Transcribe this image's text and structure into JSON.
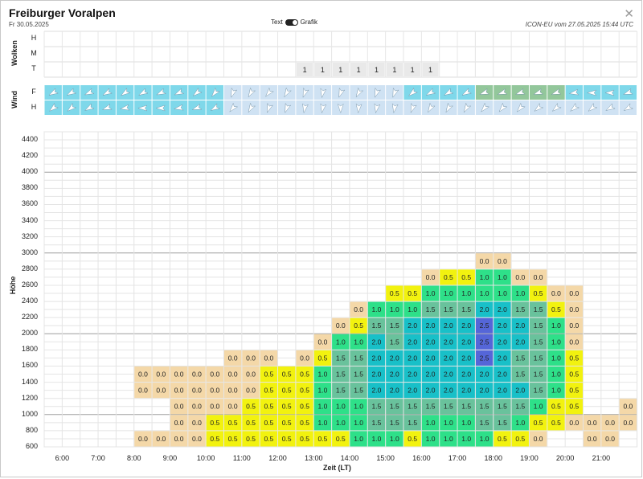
{
  "header": {
    "title": "Freiburger Voralpen",
    "date": "Fr 30.05.2025",
    "toggle_text": "Text",
    "toggle_grafik": "Grafik",
    "model_info": "ICON-EU vom 27.05.2025 15:44 UTC"
  },
  "clouds": {
    "section_label": "Wolken",
    "rows": [
      "H",
      "M",
      "T"
    ],
    "low_values": [
      null,
      null,
      null,
      null,
      null,
      null,
      null,
      null,
      null,
      null,
      null,
      null,
      null,
      null,
      1,
      1,
      1,
      1,
      1,
      1,
      1,
      1,
      null,
      null,
      null,
      null,
      null,
      null,
      null,
      null,
      null,
      null,
      null
    ]
  },
  "wind": {
    "section_label": "Wind",
    "rows": [
      "F",
      "H"
    ],
    "colors": {
      "light": "#cfe2f3",
      "cyan": "#7fd8ea",
      "green": "#93c79b"
    },
    "f_colors": [
      "cyan",
      "cyan",
      "cyan",
      "cyan",
      "cyan",
      "cyan",
      "cyan",
      "cyan",
      "cyan",
      "cyan",
      "light",
      "light",
      "light",
      "light",
      "light",
      "light",
      "light",
      "light",
      "light",
      "light",
      "cyan",
      "cyan",
      "cyan",
      "cyan",
      "green",
      "green",
      "green",
      "green",
      "green",
      "cyan",
      "cyan",
      "cyan",
      "cyan"
    ],
    "h_colors": [
      "cyan",
      "cyan",
      "cyan",
      "cyan",
      "cyan",
      "cyan",
      "cyan",
      "cyan",
      "cyan",
      "cyan",
      "light",
      "light",
      "light",
      "light",
      "light",
      "light",
      "light",
      "light",
      "light",
      "light",
      "light",
      "light",
      "light",
      "light",
      "light",
      "light",
      "light",
      "light",
      "light",
      "light",
      "light",
      "light",
      "light"
    ],
    "f_dirs": [
      240,
      240,
      245,
      240,
      235,
      240,
      245,
      245,
      230,
      220,
      200,
      210,
      220,
      210,
      200,
      190,
      200,
      210,
      200,
      200,
      230,
      240,
      240,
      240,
      250,
      250,
      250,
      250,
      250,
      260,
      270,
      270,
      250
    ],
    "h_dirs": [
      230,
      230,
      240,
      250,
      260,
      270,
      270,
      260,
      250,
      240,
      220,
      210,
      200,
      200,
      190,
      190,
      180,
      185,
      190,
      190,
      200,
      210,
      210,
      210,
      220,
      220,
      220,
      230,
      230,
      230,
      230,
      240,
      240
    ]
  },
  "chart": {
    "y_axis_title": "Höhe",
    "x_axis_title": "Zeit (LT)",
    "y_ticks": [
      600,
      800,
      1000,
      1200,
      1400,
      1600,
      1800,
      2000,
      2200,
      2400,
      2600,
      2800,
      3000,
      3200,
      3400,
      3600,
      3800,
      4000,
      4200,
      4400
    ],
    "x_ticks": [
      "6:00",
      "7:00",
      "8:00",
      "9:00",
      "10:00",
      "11:00",
      "12:00",
      "13:00",
      "14:00",
      "15:00",
      "16:00",
      "17:00",
      "18:00",
      "19:00",
      "20:00",
      "21:00"
    ],
    "legend_colors": {
      "0.0": "#f4d8a8",
      "0.5": "#f2f20f",
      "1.0": "#2ee089",
      "1.5": "#69c29c",
      "2.0": "#18c0c8",
      "2.5": "#5566d8"
    }
  },
  "chart_data": {
    "type": "heatmap",
    "title": "",
    "xlabel": "Zeit (LT)",
    "ylabel": "Höhe",
    "x": [
      "5:45",
      "6:15",
      "6:45",
      "7:15",
      "7:45",
      "8:15",
      "8:45",
      "9:15",
      "9:45",
      "10:15",
      "10:45",
      "11:15",
      "11:45",
      "12:15",
      "12:45",
      "13:15",
      "13:45",
      "14:15",
      "14:45",
      "15:15",
      "15:45",
      "16:15",
      "16:45",
      "17:15",
      "17:45",
      "18:15",
      "18:45",
      "19:15",
      "19:45",
      "20:15",
      "20:45",
      "21:15",
      "21:45"
    ],
    "y": [
      700,
      900,
      1100,
      1300,
      1500,
      1700,
      1900,
      2100,
      2300,
      2500,
      2700,
      2900
    ],
    "rows": [
      [
        null,
        null,
        null,
        null,
        null,
        0.0,
        0.0,
        0.0,
        0.0,
        0.5,
        0.5,
        0.5,
        0.5,
        0.5,
        0.5,
        0.5,
        0.5,
        1.0,
        1.0,
        1.0,
        0.5,
        1.0,
        1.0,
        1.0,
        1.0,
        0.5,
        0.5,
        0.0,
        null,
        null,
        0.0,
        0.0,
        null
      ],
      [
        null,
        null,
        null,
        null,
        null,
        null,
        null,
        0.0,
        0.0,
        0.5,
        0.5,
        0.5,
        0.5,
        0.5,
        0.5,
        1.0,
        1.0,
        1.0,
        1.5,
        1.5,
        1.5,
        1.0,
        1.0,
        1.0,
        1.5,
        1.5,
        1.0,
        0.5,
        0.5,
        0.0,
        0.0,
        0.0,
        0.0
      ],
      [
        null,
        null,
        null,
        null,
        null,
        null,
        null,
        0.0,
        0.0,
        0.0,
        0.0,
        0.5,
        0.5,
        0.5,
        0.5,
        1.0,
        1.0,
        1.0,
        1.5,
        1.5,
        1.5,
        1.5,
        1.5,
        1.5,
        1.5,
        1.5,
        1.5,
        1.0,
        0.5,
        0.5,
        null,
        null,
        0.0
      ],
      [
        null,
        null,
        null,
        null,
        null,
        0.0,
        0.0,
        0.0,
        0.0,
        0.0,
        0.0,
        0.0,
        0.5,
        0.5,
        0.5,
        1.0,
        1.5,
        1.5,
        2.0,
        2.0,
        2.0,
        2.0,
        2.0,
        2.0,
        2.0,
        2.0,
        2.0,
        1.5,
        1.0,
        0.5,
        null,
        null,
        null
      ],
      [
        null,
        null,
        null,
        null,
        null,
        0.0,
        0.0,
        0.0,
        0.0,
        0.0,
        0.0,
        0.0,
        0.5,
        0.5,
        0.5,
        1.0,
        1.5,
        1.5,
        2.0,
        2.0,
        2.0,
        2.0,
        2.0,
        2.0,
        2.0,
        2.0,
        1.5,
        1.5,
        1.0,
        0.5,
        null,
        null,
        null
      ],
      [
        null,
        null,
        null,
        null,
        null,
        null,
        null,
        null,
        null,
        null,
        0.0,
        0.0,
        0.0,
        null,
        0.0,
        0.5,
        1.5,
        1.5,
        2.0,
        2.0,
        2.0,
        2.0,
        2.0,
        2.0,
        2.5,
        2.0,
        1.5,
        1.5,
        1.0,
        0.5,
        null,
        null,
        null
      ],
      [
        null,
        null,
        null,
        null,
        null,
        null,
        null,
        null,
        null,
        null,
        null,
        null,
        null,
        null,
        null,
        0.0,
        1.0,
        1.0,
        2.0,
        1.5,
        2.0,
        2.0,
        2.0,
        2.0,
        2.5,
        2.0,
        2.0,
        1.5,
        1.0,
        0.0,
        null,
        null,
        null
      ],
      [
        null,
        null,
        null,
        null,
        null,
        null,
        null,
        null,
        null,
        null,
        null,
        null,
        null,
        null,
        null,
        null,
        0.0,
        0.5,
        1.5,
        1.5,
        2.0,
        2.0,
        2.0,
        2.0,
        2.5,
        2.0,
        2.0,
        1.5,
        1.0,
        0.0,
        null,
        null,
        null
      ],
      [
        null,
        null,
        null,
        null,
        null,
        null,
        null,
        null,
        null,
        null,
        null,
        null,
        null,
        null,
        null,
        null,
        null,
        0.0,
        1.0,
        1.0,
        1.0,
        1.5,
        1.5,
        1.5,
        2.0,
        2.0,
        1.5,
        1.5,
        0.5,
        0.0,
        null,
        null,
        null
      ],
      [
        null,
        null,
        null,
        null,
        null,
        null,
        null,
        null,
        null,
        null,
        null,
        null,
        null,
        null,
        null,
        null,
        null,
        null,
        null,
        0.5,
        0.5,
        1.0,
        1.0,
        1.0,
        1.0,
        1.0,
        1.0,
        0.5,
        0.0,
        0.0,
        null,
        null,
        null
      ],
      [
        null,
        null,
        null,
        null,
        null,
        null,
        null,
        null,
        null,
        null,
        null,
        null,
        null,
        null,
        null,
        null,
        null,
        null,
        null,
        null,
        null,
        0.0,
        0.5,
        0.5,
        1.0,
        1.0,
        0.0,
        0.0,
        null,
        null,
        null,
        null,
        null
      ],
      [
        null,
        null,
        null,
        null,
        null,
        null,
        null,
        null,
        null,
        null,
        null,
        null,
        null,
        null,
        null,
        null,
        null,
        null,
        null,
        null,
        null,
        null,
        null,
        null,
        0.0,
        0.0,
        null,
        null,
        null,
        null,
        null,
        null,
        null
      ]
    ],
    "ylim": [
      600,
      4500
    ],
    "grid": true
  }
}
